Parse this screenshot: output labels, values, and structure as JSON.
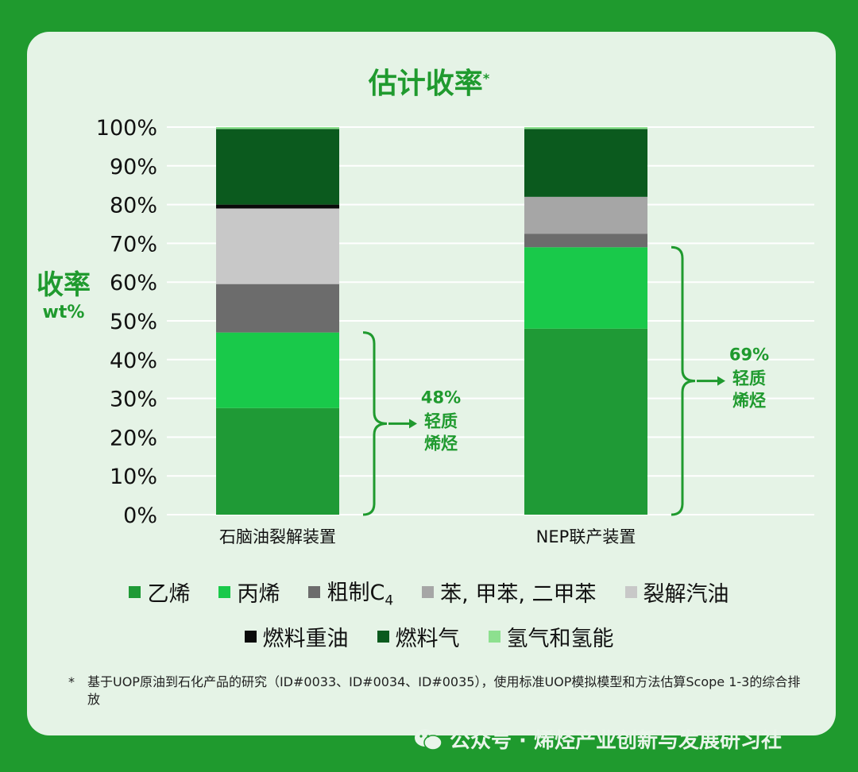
{
  "title": "估计收率",
  "title_mark": "*",
  "ylabel_main": "收率",
  "ylabel_unit": "wt%",
  "footnote_mark": "*",
  "footnote": "基于UOP原油到石化产品的研究（ID#0033、ID#0034、ID#0035），使用标准UOP模拟模型和方法估算Scope 1-3的综合排放",
  "watermark": "公众号 · 烯烃产业创新与发展研习社",
  "colors": {
    "background": "#1f9a2e",
    "card": "#e5f3e6",
    "accent": "#1f9a2e"
  },
  "chart_data": {
    "type": "bar",
    "stacked": true,
    "categories": [
      "石脑油裂解装置",
      "NEP联产装置"
    ],
    "ylim": [
      0,
      100
    ],
    "y_ticks": [
      "0%",
      "10%",
      "20%",
      "30%",
      "40%",
      "50%",
      "60%",
      "70%",
      "80%",
      "90%",
      "100%"
    ],
    "grid": true,
    "series": [
      {
        "name": "乙烯",
        "color": "#1f9a36",
        "values": [
          27.5,
          48.0
        ]
      },
      {
        "name": "丙烯",
        "color": "#19c94a",
        "values": [
          19.5,
          21.0
        ]
      },
      {
        "name": "粗制C4",
        "color": "#6c6c6c",
        "values": [
          12.5,
          3.5
        ]
      },
      {
        "name": "苯, 甲苯, 二甲苯",
        "color": "#a6a6a6",
        "values": [
          0.0,
          9.5
        ]
      },
      {
        "name": "裂解汽油",
        "color": "#c8c8c8",
        "values": [
          19.5,
          0.0
        ]
      },
      {
        "name": "燃料重油",
        "color": "#0a0a0a",
        "values": [
          1.0,
          0.0
        ]
      },
      {
        "name": "燃料气",
        "color": "#0b5a1e",
        "values": [
          19.5,
          17.5
        ]
      },
      {
        "name": "氢气和氢能",
        "color": "#8de08f",
        "values": [
          0.5,
          0.5
        ]
      }
    ],
    "annotations": [
      {
        "category": "石脑油裂解装置",
        "range": [
          0,
          47
        ],
        "value": "48%",
        "label": "轻质烯烃"
      },
      {
        "category": "NEP联产装置",
        "range": [
          0,
          69
        ],
        "value": "69%",
        "label": "轻质烯烃"
      }
    ]
  }
}
